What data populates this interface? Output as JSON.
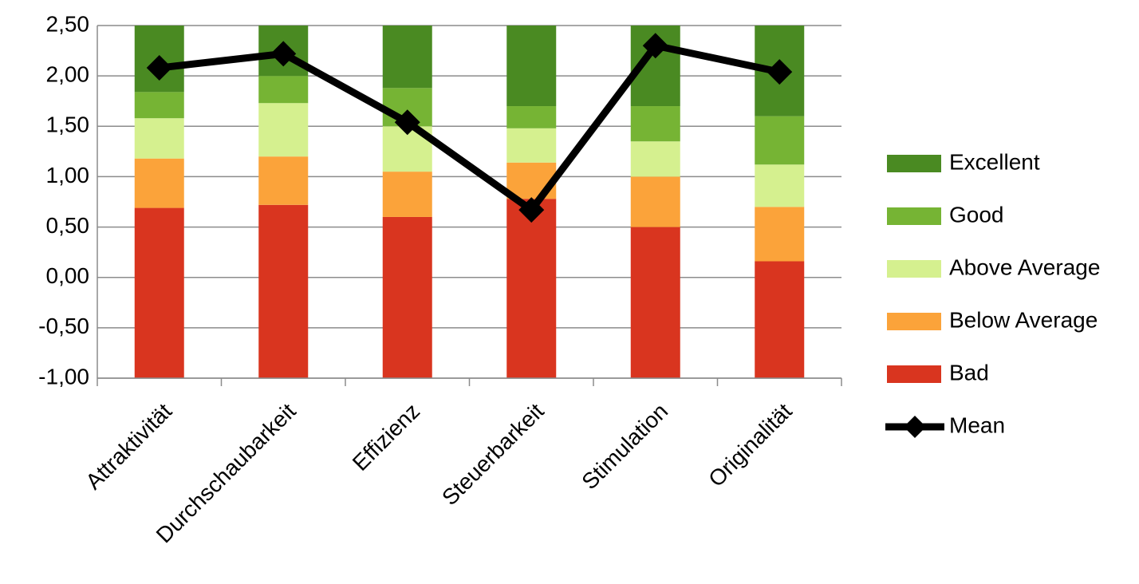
{
  "chart_data": {
    "type": "stacked_bar",
    "categories": [
      "Attraktivität",
      "Durchschaubarkeit",
      "Effizienz",
      "Steuerbarkeit",
      "Stimulation",
      "Originalität"
    ],
    "series": [
      {
        "name": "Bad",
        "color": "#d9351f",
        "values": [
          0.69,
          0.72,
          0.6,
          0.78,
          0.5,
          0.16
        ]
      },
      {
        "name": "Below Average",
        "color": "#fba33a",
        "values": [
          0.49,
          0.48,
          0.45,
          0.36,
          0.5,
          0.54
        ]
      },
      {
        "name": "Above Average",
        "color": "#d5f08f",
        "values": [
          0.4,
          0.53,
          0.45,
          0.34,
          0.35,
          0.42
        ]
      },
      {
        "name": "Good",
        "color": "#76b434",
        "values": [
          0.26,
          0.27,
          0.38,
          0.22,
          0.35,
          0.48
        ]
      },
      {
        "name": "Excellent",
        "color": "#4a8a22",
        "values": [
          0.66,
          0.5,
          0.62,
          0.8,
          0.8,
          0.9
        ]
      },
      {
        "name": "Mean",
        "type": "line",
        "color": "#000000",
        "values": [
          2.08,
          2.22,
          1.54,
          0.67,
          2.3,
          2.04
        ]
      }
    ],
    "ylim": [
      -1,
      2.5
    ],
    "yticks": [
      {
        "value": -1,
        "label": "-1,00"
      },
      {
        "value": -0.5,
        "label": "-0,50"
      },
      {
        "value": 0,
        "label": "0,00"
      },
      {
        "value": 0.5,
        "label": "0,50"
      },
      {
        "value": 1,
        "label": "1,00"
      },
      {
        "value": 1.5,
        "label": "1,50"
      },
      {
        "value": 2,
        "label": "2,00"
      },
      {
        "value": 2.5,
        "label": "2,50"
      }
    ],
    "grid": true,
    "legend": "right"
  }
}
